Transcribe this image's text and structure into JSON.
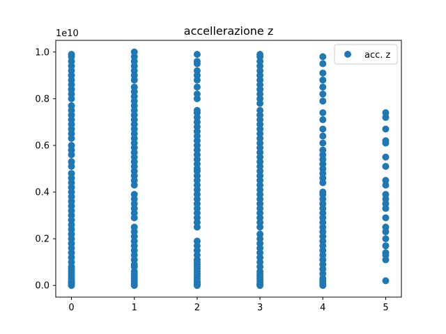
{
  "chart_data": {
    "type": "scatter",
    "title": "accellerazione z",
    "xlabel": "",
    "ylabel": "",
    "y_offset_text": "1e10",
    "xlim": [
      -0.25,
      5.25
    ],
    "ylim": [
      -0.05,
      1.05
    ],
    "x_ticks": [
      0,
      1,
      2,
      3,
      4,
      5
    ],
    "x_tick_labels": [
      "0",
      "1",
      "2",
      "3",
      "4",
      "5"
    ],
    "y_ticks": [
      0.0,
      0.2,
      0.4,
      0.6,
      0.8,
      1.0
    ],
    "y_tick_labels": [
      "0.0",
      "0.2",
      "0.4",
      "0.6",
      "0.8",
      "1.0"
    ],
    "grid": false,
    "legend": {
      "placement": "top-right",
      "entries": [
        "acc. z"
      ]
    },
    "series": [
      {
        "name": "acc. z",
        "color": "#1f77b4",
        "points_by_x": [
          {
            "x": 0,
            "y": [
              0.99,
              0.98,
              0.96,
              0.94,
              0.92,
              0.9,
              0.88,
              0.86,
              0.84,
              0.82,
              0.8,
              0.77,
              0.75,
              0.73,
              0.71,
              0.69,
              0.67,
              0.65,
              0.63,
              0.6,
              0.58,
              0.56,
              0.53,
              0.51,
              0.48,
              0.46,
              0.44,
              0.42,
              0.4,
              0.38,
              0.36,
              0.34,
              0.32,
              0.3,
              0.28,
              0.26,
              0.24,
              0.22,
              0.2,
              0.18,
              0.16,
              0.14,
              0.12,
              0.1,
              0.08,
              0.07,
              0.06,
              0.05,
              0.04,
              0.03,
              0.02,
              0.015,
              0.01,
              0.005,
              0.0
            ]
          },
          {
            "x": 1,
            "y": [
              1.0,
              0.98,
              0.96,
              0.94,
              0.92,
              0.9,
              0.88,
              0.85,
              0.83,
              0.81,
              0.79,
              0.77,
              0.75,
              0.73,
              0.71,
              0.69,
              0.67,
              0.65,
              0.63,
              0.61,
              0.59,
              0.57,
              0.55,
              0.53,
              0.51,
              0.49,
              0.47,
              0.45,
              0.43,
              0.39,
              0.37,
              0.35,
              0.33,
              0.31,
              0.29,
              0.25,
              0.23,
              0.21,
              0.19,
              0.17,
              0.15,
              0.13,
              0.11,
              0.09,
              0.08,
              0.06,
              0.05,
              0.04,
              0.03,
              0.02,
              0.01,
              0.005,
              0.0
            ]
          },
          {
            "x": 2,
            "y": [
              0.99,
              0.96,
              0.95,
              0.92,
              0.9,
              0.88,
              0.85,
              0.82,
              0.8,
              0.75,
              0.74,
              0.72,
              0.7,
              0.68,
              0.66,
              0.64,
              0.62,
              0.6,
              0.58,
              0.56,
              0.54,
              0.52,
              0.5,
              0.49,
              0.47,
              0.45,
              0.43,
              0.41,
              0.39,
              0.37,
              0.35,
              0.33,
              0.31,
              0.29,
              0.27,
              0.25,
              0.19,
              0.17,
              0.15,
              0.13,
              0.11,
              0.1,
              0.09,
              0.08,
              0.07,
              0.06,
              0.05,
              0.04,
              0.03,
              0.02,
              0.015,
              0.01,
              0.005,
              0.0
            ]
          },
          {
            "x": 3,
            "y": [
              0.99,
              0.98,
              0.96,
              0.94,
              0.92,
              0.9,
              0.88,
              0.86,
              0.84,
              0.82,
              0.8,
              0.78,
              0.75,
              0.73,
              0.71,
              0.69,
              0.67,
              0.65,
              0.63,
              0.61,
              0.59,
              0.57,
              0.55,
              0.53,
              0.51,
              0.49,
              0.47,
              0.45,
              0.43,
              0.41,
              0.39,
              0.37,
              0.35,
              0.33,
              0.31,
              0.29,
              0.27,
              0.25,
              0.22,
              0.2,
              0.18,
              0.16,
              0.14,
              0.12,
              0.1,
              0.08,
              0.06,
              0.05,
              0.04,
              0.03,
              0.02,
              0.01,
              0.005,
              0.0
            ]
          },
          {
            "x": 4,
            "y": [
              0.98,
              0.95,
              0.91,
              0.88,
              0.85,
              0.82,
              0.79,
              0.74,
              0.71,
              0.67,
              0.64,
              0.61,
              0.58,
              0.56,
              0.54,
              0.52,
              0.5,
              0.48,
              0.46,
              0.44,
              0.4,
              0.39,
              0.37,
              0.35,
              0.33,
              0.31,
              0.29,
              0.27,
              0.25,
              0.23,
              0.21,
              0.19,
              0.17,
              0.15,
              0.13,
              0.11,
              0.09,
              0.07,
              0.05,
              0.03,
              0.02,
              0.01,
              0.005,
              0.0
            ]
          },
          {
            "x": 5,
            "y": [
              0.74,
              0.72,
              0.67,
              0.62,
              0.61,
              0.55,
              0.51,
              0.45,
              0.43,
              0.39,
              0.37,
              0.35,
              0.33,
              0.29,
              0.25,
              0.23,
              0.2,
              0.17,
              0.14,
              0.13,
              0.11,
              0.02
            ]
          }
        ]
      }
    ]
  }
}
